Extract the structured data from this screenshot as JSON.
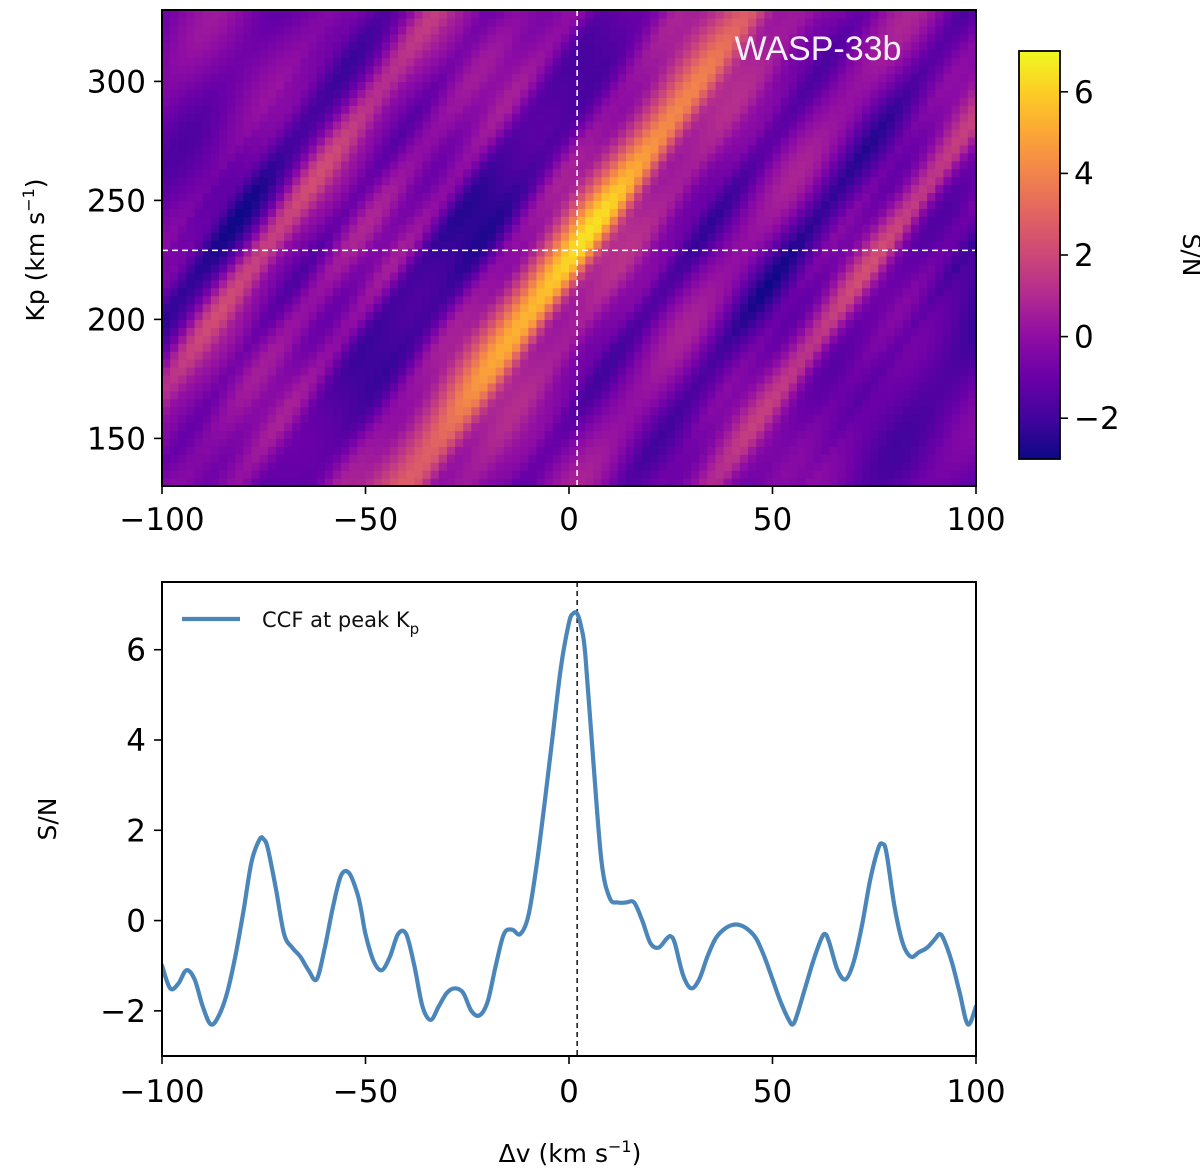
{
  "chart_data": [
    {
      "type": "heatmap",
      "title": "WASP-33b",
      "xlabel": "",
      "ylabel_main": "Kp (km s",
      "ylabel_sup": "−1",
      "ylabel_close": ")",
      "xlim": [
        -100,
        100
      ],
      "ylim": [
        130,
        330
      ],
      "xticks": [
        -100,
        -50,
        0,
        50,
        100
      ],
      "xtick_labels": [
        "−100",
        "−50",
        "0",
        "50",
        "100"
      ],
      "yticks": [
        150,
        200,
        250,
        300
      ],
      "ytick_labels": [
        "150",
        "200",
        "250",
        "300"
      ],
      "colormap": "plasma",
      "colorbar": {
        "label": "S/N",
        "range": [
          -3,
          7
        ],
        "ticks": [
          -2,
          0,
          2,
          4,
          6
        ],
        "tick_labels": [
          "−2",
          "0",
          "2",
          "4",
          "6"
        ]
      },
      "peak": {
        "dv": 2,
        "kp": 229,
        "snr": 6.8
      },
      "crosshair": {
        "dv": 2,
        "kp": 229,
        "color": "#ffffff",
        "style": "dashed"
      }
    },
    {
      "type": "line",
      "title": "",
      "xlabel_main": "Δv (km s",
      "xlabel_sup": "−1",
      "xlabel_close": ")",
      "ylabel": "S/N",
      "xlim": [
        -100,
        100
      ],
      "ylim": [
        -3,
        7.5
      ],
      "xticks": [
        -100,
        -50,
        0,
        50,
        100
      ],
      "xtick_labels": [
        "−100",
        "−50",
        "0",
        "50",
        "100"
      ],
      "yticks": [
        -2,
        0,
        2,
        4,
        6
      ],
      "ytick_labels": [
        "−2",
        "0",
        "2",
        "4",
        "6"
      ],
      "vline": {
        "x": 2,
        "color": "#000000",
        "style": "dashed"
      },
      "series": [
        {
          "name": "CCF at peak Kp",
          "legend_main": "CCF at peak K",
          "legend_sub": "p",
          "color": "#4b86bb",
          "x": [
            -100,
            -98,
            -96,
            -94,
            -92,
            -90,
            -88,
            -86,
            -84,
            -82,
            -80,
            -78,
            -76,
            -75,
            -74,
            -72,
            -70,
            -68,
            -66,
            -64,
            -62,
            -60,
            -58,
            -56,
            -54,
            -52,
            -51,
            -50,
            -48,
            -46,
            -44,
            -42,
            -40,
            -38,
            -36,
            -34,
            -32,
            -30,
            -28,
            -26,
            -24,
            -22,
            -20,
            -18,
            -16,
            -14,
            -12,
            -10,
            -8,
            -6,
            -4,
            -2,
            0,
            1,
            2,
            3,
            4,
            6,
            8,
            10,
            12,
            14,
            16,
            18,
            20,
            22,
            24,
            25,
            26,
            28,
            30,
            32,
            34,
            36,
            38,
            40,
            42,
            44,
            46,
            48,
            50,
            52,
            54,
            55,
            56,
            58,
            60,
            62,
            63,
            64,
            66,
            68,
            70,
            72,
            74,
            76,
            77,
            78,
            80,
            82,
            84,
            86,
            88,
            90,
            91,
            92,
            94,
            96,
            98,
            100
          ],
          "y": [
            -1.0,
            -1.5,
            -1.4,
            -1.1,
            -1.3,
            -1.9,
            -2.3,
            -2.1,
            -1.6,
            -0.8,
            0.2,
            1.3,
            1.8,
            1.8,
            1.6,
            0.7,
            -0.3,
            -0.6,
            -0.8,
            -1.1,
            -1.3,
            -0.6,
            0.3,
            1.0,
            1.05,
            0.6,
            0.2,
            -0.3,
            -0.9,
            -1.1,
            -0.8,
            -0.3,
            -0.3,
            -1.0,
            -1.9,
            -2.2,
            -1.9,
            -1.6,
            -1.5,
            -1.6,
            -2.0,
            -2.1,
            -1.8,
            -1.0,
            -0.3,
            -0.2,
            -0.3,
            0.1,
            1.2,
            2.6,
            4.1,
            5.6,
            6.6,
            6.8,
            6.8,
            6.5,
            5.9,
            3.5,
            1.3,
            0.5,
            0.4,
            0.4,
            0.4,
            0.0,
            -0.5,
            -0.6,
            -0.4,
            -0.35,
            -0.5,
            -1.2,
            -1.5,
            -1.3,
            -0.8,
            -0.4,
            -0.2,
            -0.1,
            -0.1,
            -0.2,
            -0.4,
            -0.8,
            -1.3,
            -1.8,
            -2.2,
            -2.3,
            -2.1,
            -1.5,
            -0.9,
            -0.4,
            -0.3,
            -0.5,
            -1.1,
            -1.3,
            -0.9,
            -0.1,
            0.9,
            1.6,
            1.7,
            1.5,
            0.3,
            -0.5,
            -0.8,
            -0.7,
            -0.6,
            -0.4,
            -0.3,
            -0.4,
            -0.9,
            -1.6,
            -2.3,
            -1.9
          ]
        }
      ]
    }
  ]
}
